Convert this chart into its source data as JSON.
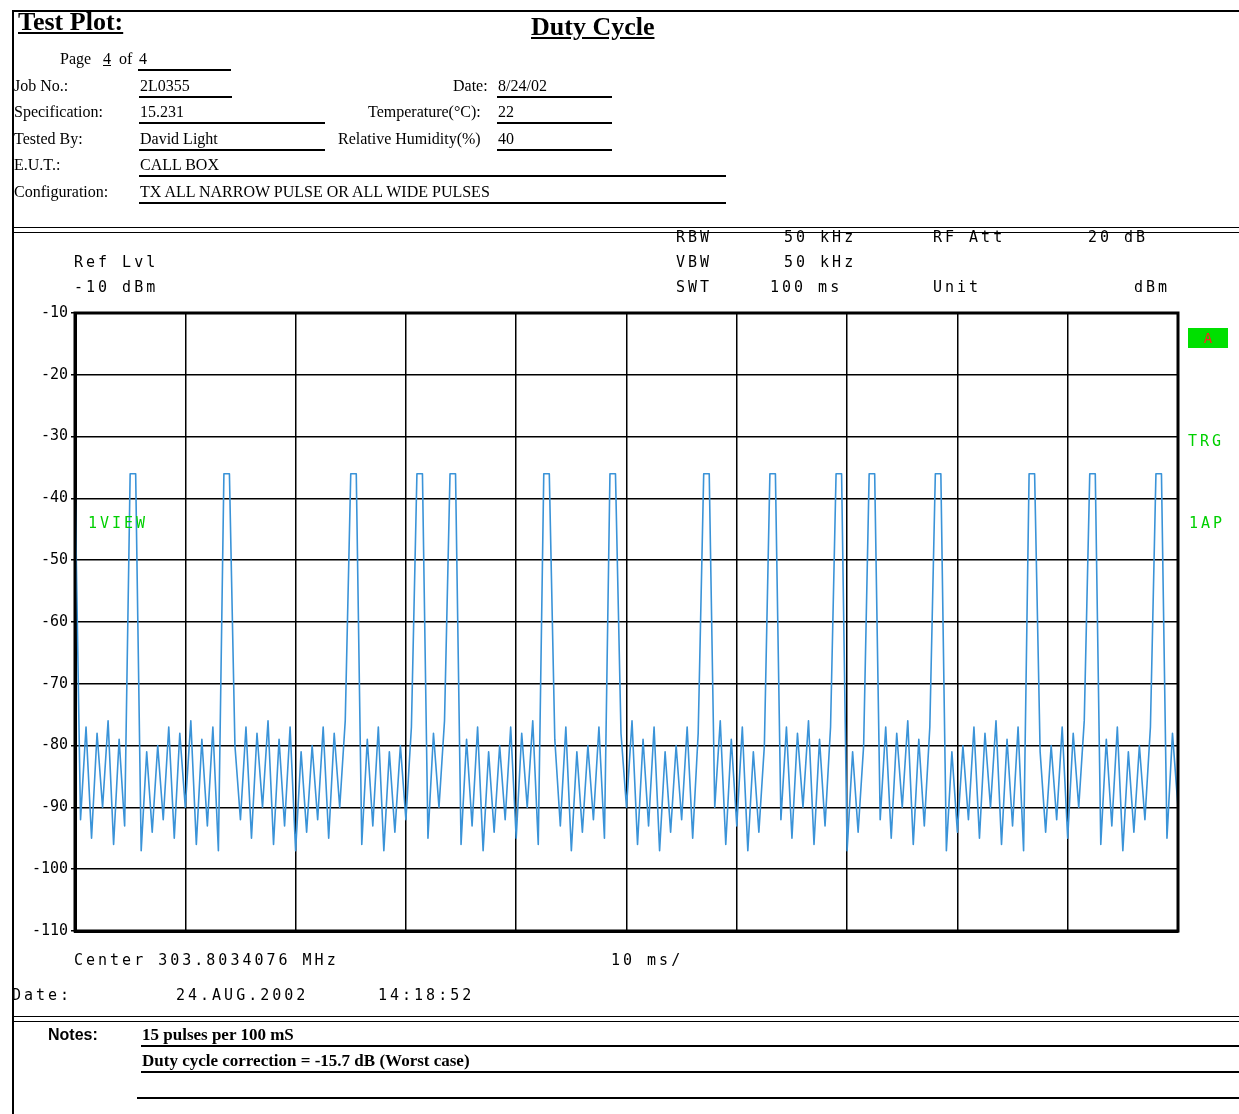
{
  "chart_data": {
    "type": "line",
    "title": "Duty Cycle",
    "annotations": [
      "Test Plot:",
      "Page",
      "4",
      "of",
      "4",
      "Job No.:",
      "2L0355",
      "Date:",
      "8/24/02",
      "Specification:",
      "15.231",
      "Temperature(°C):",
      "22",
      "Tested By:",
      "David Light",
      "Relative Humidity(%)",
      "40",
      "E.U.T.:",
      "CALL BOX",
      "Configuration:",
      "TX ALL NARROW PULSE OR ALL WIDE PULSES",
      "Ref Lvl",
      "-10 dBm",
      "RBW",
      "50 kHz",
      "VBW",
      "50 kHz",
      "SWT",
      "100 ms",
      "RF Att",
      "20 dB",
      "Unit",
      "dBm",
      "A",
      "TRG",
      "1AP",
      "1VIEW",
      "Center 303.8034076 MHz",
      "10 ms/",
      "Date:",
      "24.AUG.2002",
      "14:18:52",
      "Notes:",
      "15 pulses per 100 mS",
      "Duty cycle correction = -15.7 dB (Worst case)"
    ],
    "categories": [
      null,
      null,
      null,
      null,
      null,
      null,
      null,
      null,
      null,
      null,
      null,
      null,
      null,
      null,
      null,
      null,
      null,
      null,
      null,
      null,
      null,
      null,
      null,
      null,
      null,
      null,
      null,
      null,
      null,
      null,
      null,
      null,
      null,
      null,
      null,
      null,
      null,
      null,
      null,
      null,
      null,
      null,
      null,
      null,
      null,
      null,
      null,
      null,
      null,
      null,
      null,
      null,
      null,
      null,
      null,
      null,
      null,
      null,
      null,
      null,
      null,
      null,
      null,
      null,
      null,
      null,
      null,
      null,
      null,
      null,
      null,
      null,
      null,
      null,
      null,
      null,
      null,
      null,
      null,
      null,
      null,
      null,
      null,
      null,
      null,
      null,
      null,
      null,
      null,
      null,
      null,
      null,
      null,
      null,
      null,
      null,
      null,
      null,
      null,
      null,
      null,
      null,
      null,
      null,
      null,
      null,
      null,
      null,
      null,
      null,
      null,
      null,
      null,
      null,
      null,
      null,
      null,
      null,
      null,
      null,
      null,
      null,
      null,
      null,
      null,
      null,
      null,
      null,
      null,
      null,
      null,
      null,
      null,
      null,
      null,
      null,
      null,
      null,
      null,
      null,
      null,
      null,
      null,
      null,
      null,
      null,
      null,
      null,
      null,
      null,
      null,
      null,
      null,
      null,
      null,
      null,
      null,
      null,
      null,
      null,
      null,
      null,
      null,
      null,
      null,
      null,
      null,
      null,
      null,
      null,
      null,
      null,
      null,
      null,
      null,
      null,
      null,
      null,
      null,
      null,
      null,
      null,
      null,
      null,
      null,
      null,
      null,
      null,
      null,
      null,
      null,
      null,
      null,
      null,
      null,
      null,
      null,
      null,
      null,
      null,
      null
    ],
    "series": [
      {
        "color": "#3a93d8",
        "values": [
          -37,
          -92,
          -77,
          -95,
          -78,
          -90,
          -76,
          -96,
          -79,
          -93,
          -36,
          -36,
          -97,
          -81,
          -94,
          -80,
          -92,
          -77,
          -95,
          -78,
          -90,
          -76,
          -96,
          -79,
          -93,
          -77,
          -97,
          -36,
          -36,
          -80,
          -92,
          -77,
          -95,
          -78,
          -90,
          -76,
          -96,
          -79,
          -93,
          -77,
          -97,
          -81,
          -94,
          -80,
          -92,
          -77,
          -95,
          -78,
          -90,
          -76,
          -36,
          -36,
          -96,
          -79,
          -93,
          -77,
          -97,
          -81,
          -94,
          -80,
          -92,
          -77,
          -36,
          -36,
          -95,
          -78,
          -90,
          -76,
          -36,
          -36,
          -96,
          -79,
          -93,
          -77,
          -97,
          -81,
          -94,
          -80,
          -92,
          -77,
          -95,
          -78,
          -90,
          -76,
          -96,
          -36,
          -36,
          -79,
          -93,
          -77,
          -97,
          -81,
          -94,
          -80,
          -92,
          -77,
          -95,
          -36,
          -36,
          -78,
          -90,
          -76,
          -96,
          -79,
          -93,
          -77,
          -97,
          -81,
          -94,
          -80,
          -92,
          -77,
          -95,
          -78,
          -36,
          -36,
          -90,
          -76,
          -96,
          -79,
          -93,
          -77,
          -97,
          -81,
          -94,
          -80,
          -36,
          -36,
          -92,
          -77,
          -95,
          -78,
          -90,
          -76,
          -96,
          -79,
          -93,
          -77,
          -36,
          -36,
          -97,
          -81,
          -94,
          -80,
          -36,
          -36,
          -92,
          -77,
          -95,
          -78,
          -90,
          -76,
          -96,
          -79,
          -93,
          -77,
          -36,
          -36,
          -97,
          -81,
          -94,
          -80,
          -92,
          -77,
          -95,
          -78,
          -90,
          -76,
          -96,
          -79,
          -93,
          -77,
          -97,
          -36,
          -36,
          -81,
          -94,
          -80,
          -92,
          -77,
          -95,
          -78,
          -90,
          -76,
          -36,
          -36,
          -96,
          -79,
          -93,
          -77,
          -97,
          -81,
          -94,
          -80,
          -92,
          -77,
          -36,
          -36,
          -95,
          -78,
          -90
        ]
      }
    ],
    "ylim": [
      -110,
      -10
    ],
    "yticks": [
      -110,
      -100,
      -90,
      -80,
      -70,
      -60,
      -50,
      -40,
      -30,
      -20,
      -10
    ],
    "tick_labels": "y",
    "grid": true,
    "legend": false,
    "marker": "none",
    "line_style": "solid"
  }
}
